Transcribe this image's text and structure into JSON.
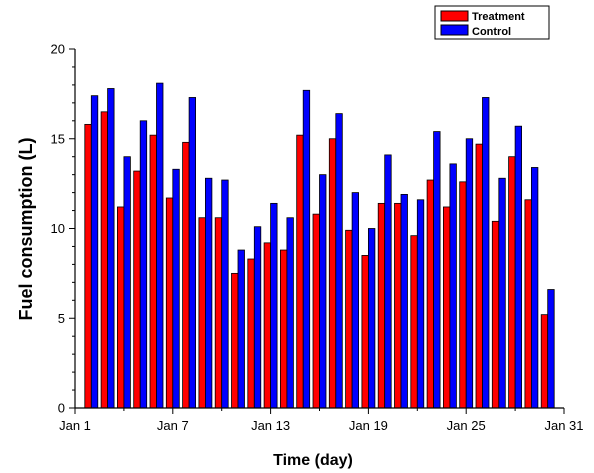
{
  "chart_data": {
    "type": "bar",
    "title": "",
    "xlabel": "Time (day)",
    "ylabel": "Fuel consumption (L)",
    "ylim": [
      0,
      20
    ],
    "xlim_day": [
      1,
      31
    ],
    "x_ticks": [
      {
        "day": 1,
        "label": "Jan 1"
      },
      {
        "day": 7,
        "label": "Jan 7"
      },
      {
        "day": 13,
        "label": "Jan 13"
      },
      {
        "day": 19,
        "label": "Jan 19"
      },
      {
        "day": 25,
        "label": "Jan 25"
      },
      {
        "day": 31,
        "label": "Jan 31"
      }
    ],
    "y_ticks": [
      0,
      5,
      10,
      15,
      20
    ],
    "legend_position": "top-right",
    "grid": false,
    "days": [
      "Jan 2",
      "Jan 3",
      "Jan 4",
      "Jan 5",
      "Jan 6",
      "Jan 7",
      "Jan 8",
      "Jan 9",
      "Jan 10",
      "Jan 11",
      "Jan 12",
      "Jan 13",
      "Jan 14",
      "Jan 15",
      "Jan 16",
      "Jan 17",
      "Jan 18",
      "Jan 19",
      "Jan 20",
      "Jan 21",
      "Jan 22",
      "Jan 23",
      "Jan 24",
      "Jan 25",
      "Jan 26",
      "Jan 27",
      "Jan 28",
      "Jan 29",
      "Jan 30"
    ],
    "series": [
      {
        "name": "Treatment",
        "color": "#ff0000",
        "values": [
          15.8,
          16.5,
          11.2,
          13.2,
          15.2,
          11.7,
          14.8,
          10.6,
          10.6,
          7.5,
          8.3,
          9.2,
          8.8,
          15.2,
          10.8,
          15.0,
          9.9,
          8.5,
          11.4,
          11.4,
          9.6,
          12.7,
          11.2,
          12.6,
          14.7,
          10.4,
          14.0,
          11.6,
          5.2
        ]
      },
      {
        "name": "Control",
        "color": "#0000ff",
        "values": [
          17.4,
          17.8,
          14.0,
          16.0,
          18.1,
          13.3,
          17.3,
          12.8,
          12.7,
          8.8,
          10.1,
          11.4,
          10.6,
          17.7,
          13.0,
          16.4,
          12.0,
          10.0,
          14.1,
          11.9,
          11.6,
          15.4,
          13.6,
          15.0,
          17.3,
          12.8,
          15.7,
          13.4,
          6.6
        ]
      }
    ]
  }
}
